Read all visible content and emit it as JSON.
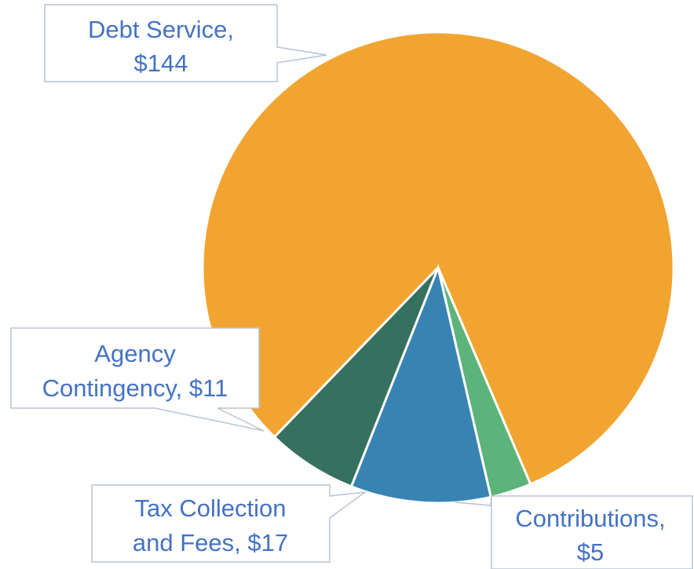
{
  "chart_data": {
    "type": "pie",
    "categories": [
      "Debt Service",
      "Contributions",
      "Tax Collection and Fees",
      "Agency Contingency"
    ],
    "values": [
      144,
      5,
      17,
      11
    ],
    "colors": [
      "#f2a431",
      "#5db47a",
      "#3784b3",
      "#36705f"
    ],
    "labels": [
      {
        "line1": "Debt Service,",
        "line2": "$144"
      },
      {
        "line1": "Contributions,",
        "line2": "$5"
      },
      {
        "line1": "Tax Collection",
        "line2": "and Fees, $17"
      },
      {
        "line1": "Agency",
        "line2": "Contingency, $11"
      }
    ],
    "title": "",
    "legend": "none"
  }
}
